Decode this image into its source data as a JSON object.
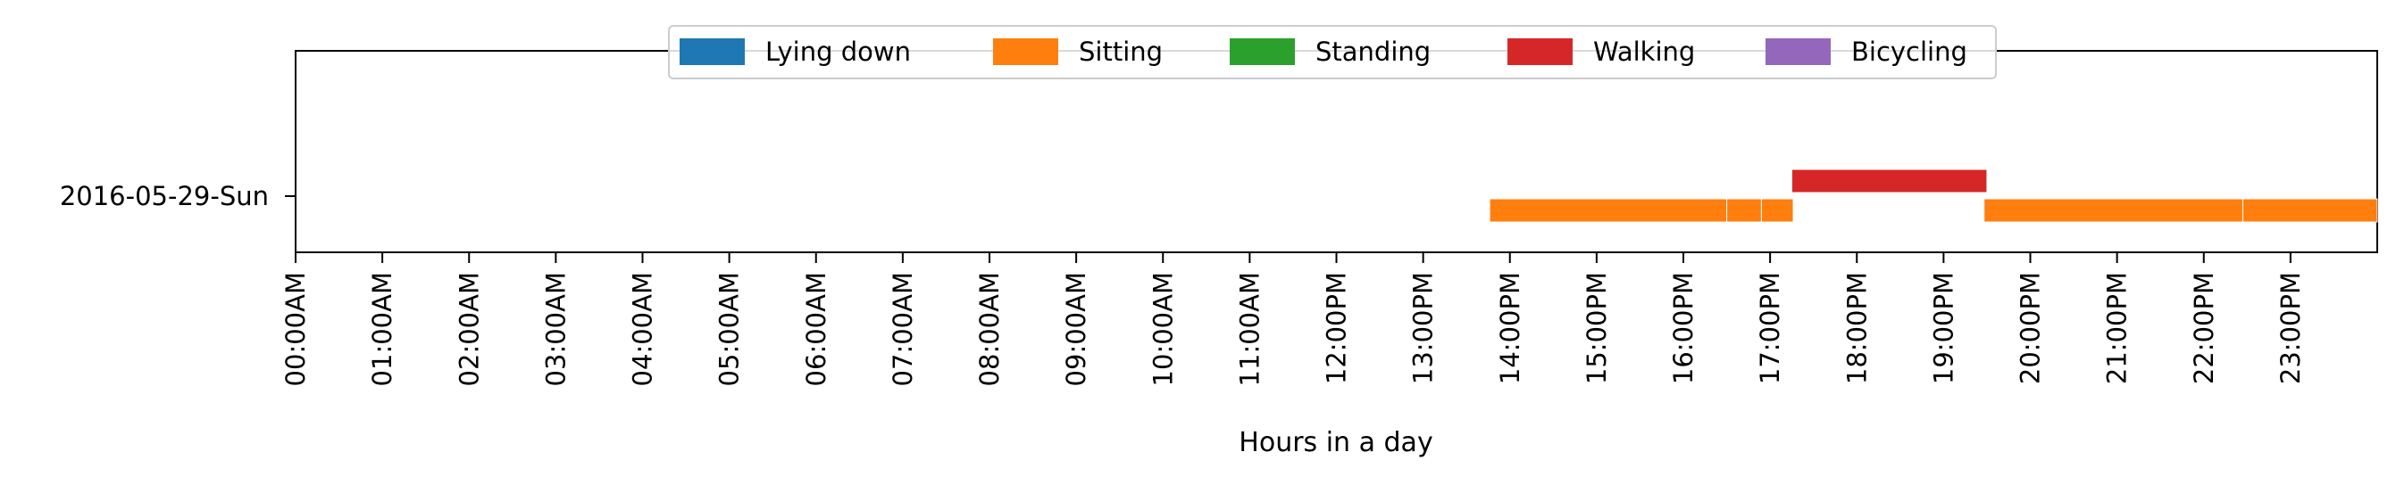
{
  "chart_data": {
    "type": "timeline",
    "title": "",
    "xlabel": "Hours in a day",
    "ylabel": "",
    "xlim": [
      0,
      24
    ],
    "grid": false,
    "legend_position": "top-center",
    "rows": [
      "2016-05-29-Sun"
    ],
    "x_ticks": [
      "00:00AM",
      "01:00AM",
      "02:00AM",
      "03:00AM",
      "04:00AM",
      "05:00AM",
      "06:00AM",
      "07:00AM",
      "08:00AM",
      "09:00AM",
      "10:00AM",
      "11:00AM",
      "12:00PM",
      "13:00PM",
      "14:00PM",
      "15:00PM",
      "16:00PM",
      "17:00PM",
      "18:00PM",
      "19:00PM",
      "20:00PM",
      "21:00PM",
      "22:00PM",
      "23:00PM"
    ],
    "series": [
      {
        "name": "Lying down",
        "color": "#1f77b4",
        "segments": []
      },
      {
        "name": "Sitting",
        "color": "#ff7f0e",
        "segments": [
          {
            "row": "2016-05-29-Sun",
            "start": "13:46",
            "end": "16:30"
          },
          {
            "row": "2016-05-29-Sun",
            "start": "16:30",
            "end": "16:54"
          },
          {
            "row": "2016-05-29-Sun",
            "start": "16:54",
            "end": "17:16"
          },
          {
            "row": "2016-05-29-Sun",
            "start": "19:28",
            "end": "22:27"
          },
          {
            "row": "2016-05-29-Sun",
            "start": "22:27",
            "end": "24:00"
          }
        ]
      },
      {
        "name": "Standing",
        "color": "#2ca02c",
        "segments": []
      },
      {
        "name": "Walking",
        "color": "#d62728",
        "segments": [
          {
            "row": "2016-05-29-Sun",
            "start": "17:15",
            "end": "19:30"
          }
        ]
      },
      {
        "name": "Bicycling",
        "color": "#9467bd",
        "segments": []
      }
    ]
  }
}
